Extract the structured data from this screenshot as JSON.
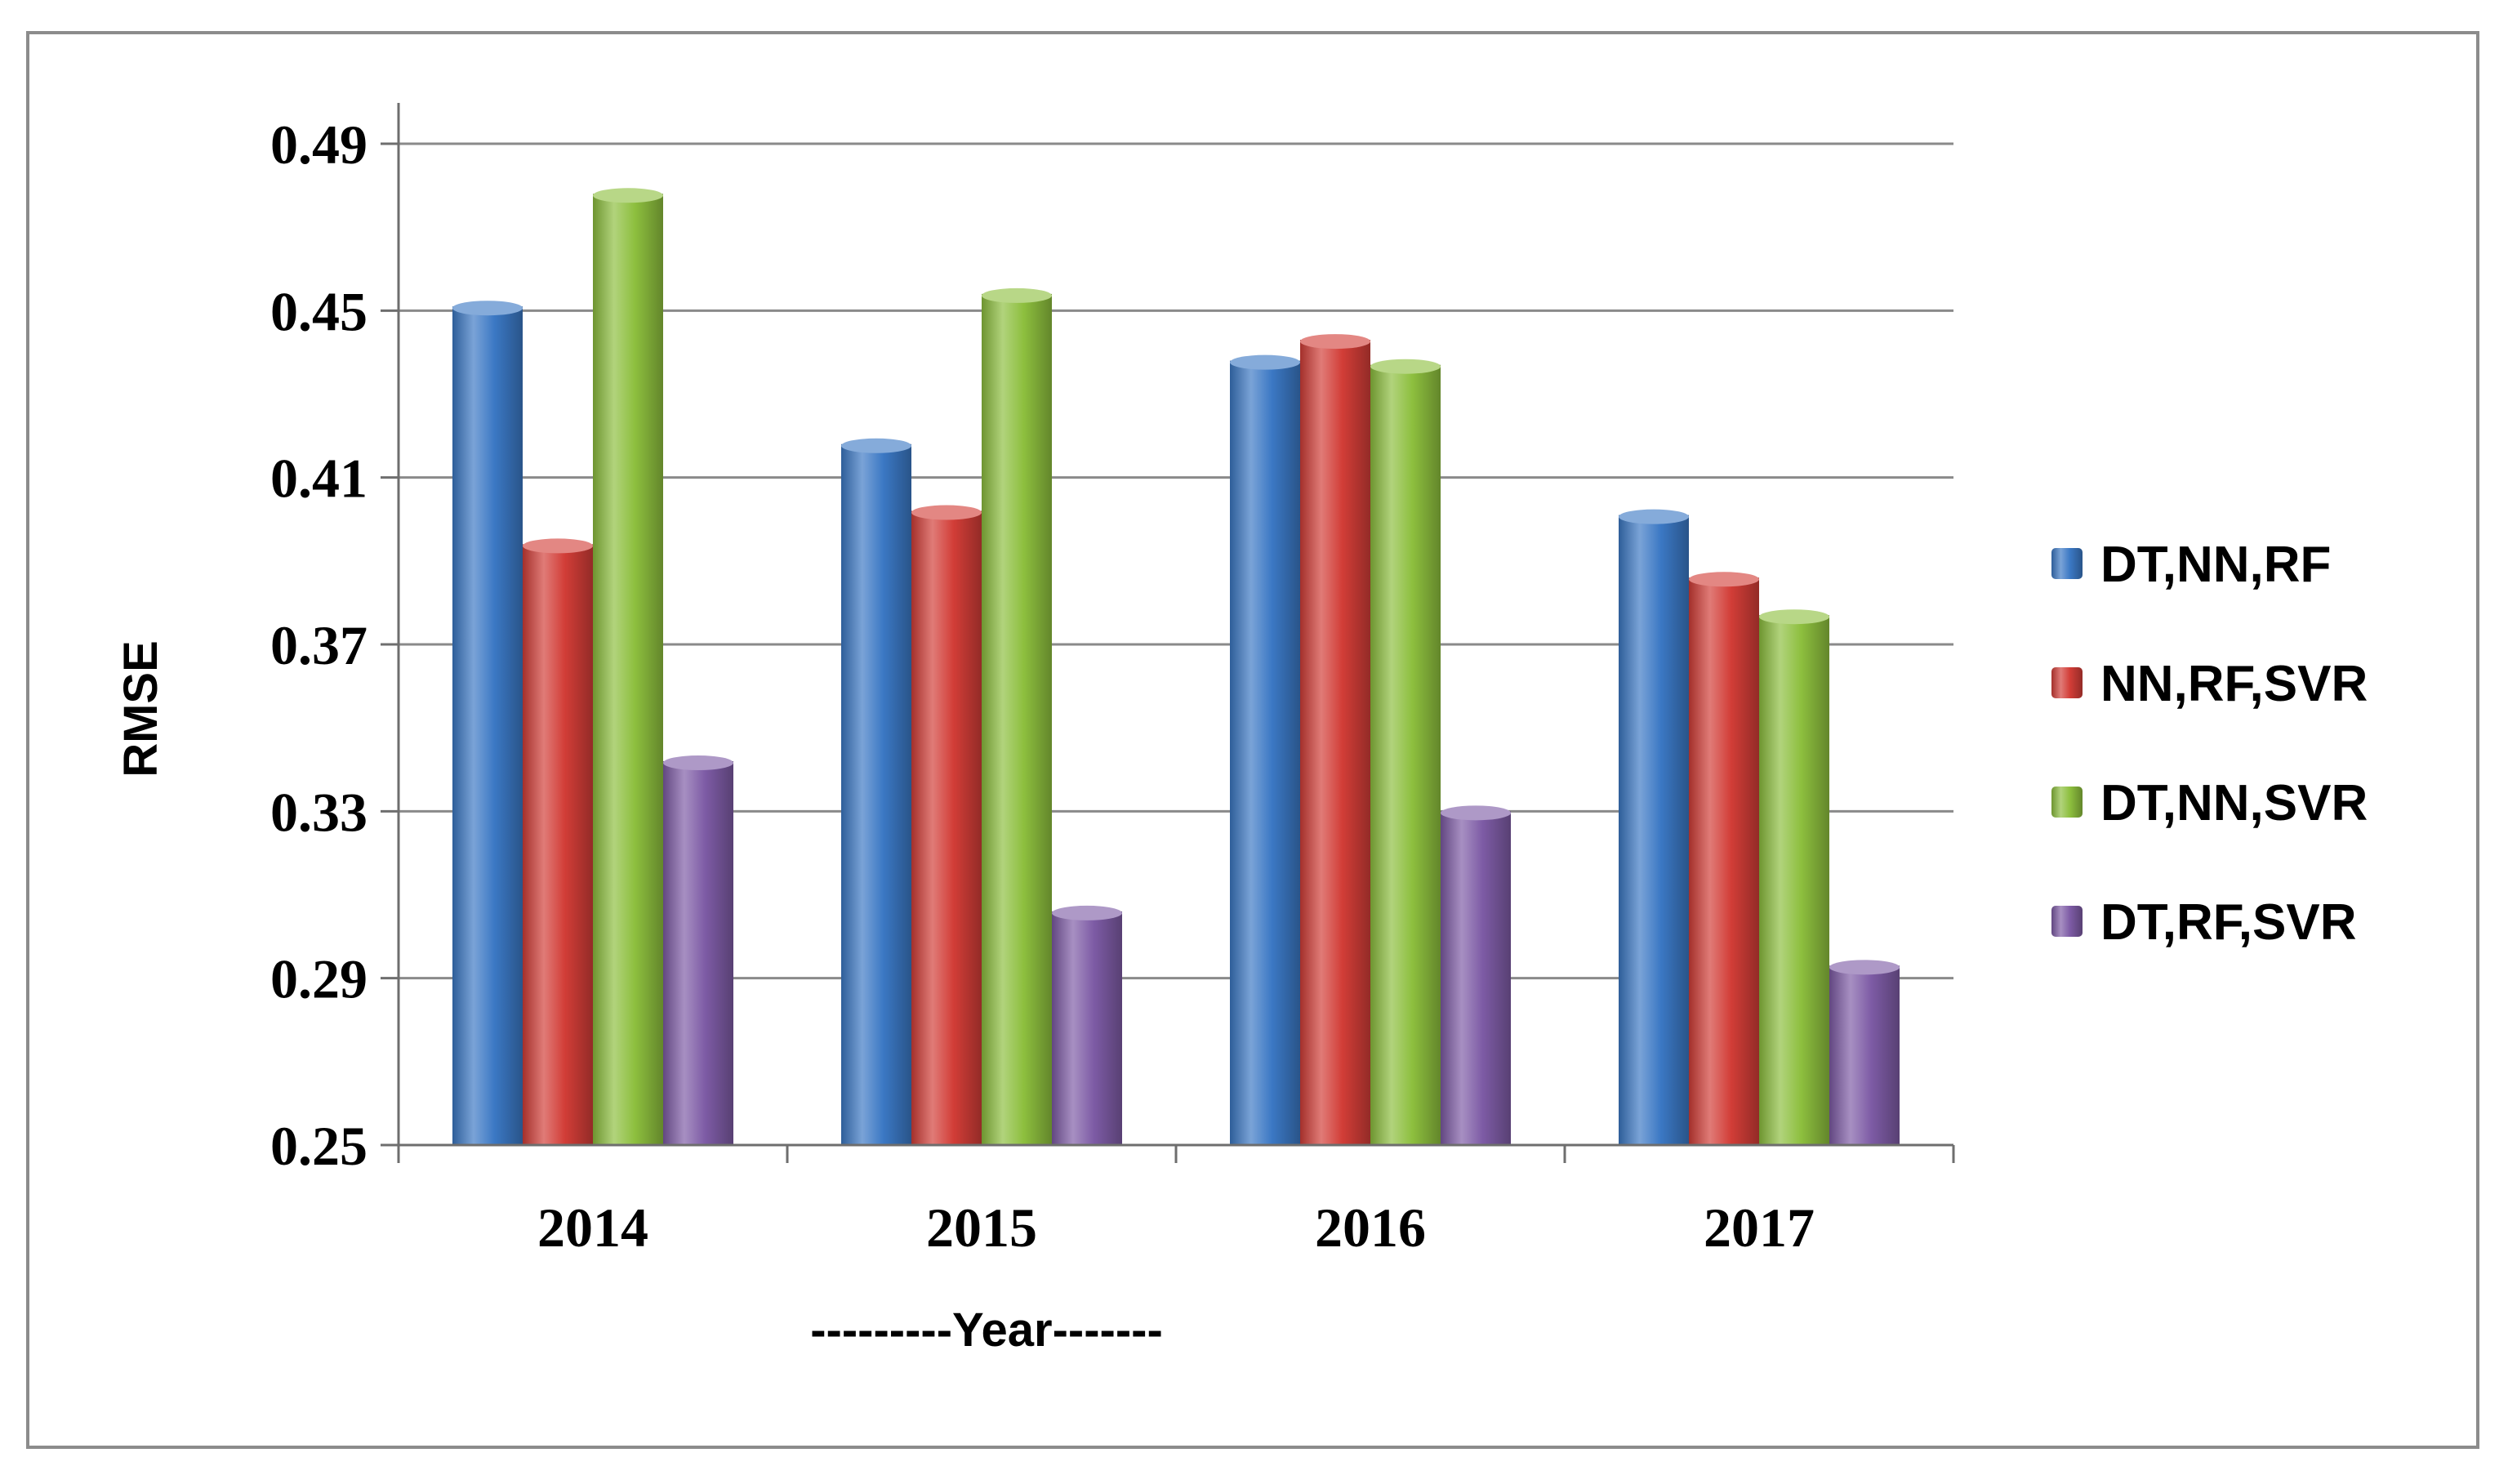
{
  "chart_data": {
    "type": "bar",
    "categories": [
      "2014",
      "2015",
      "2016",
      "2017"
    ],
    "series": [
      {
        "name": "DT,NN,RF",
        "values": [
          0.451,
          0.418,
          0.438,
          0.401
        ],
        "color": "#3b78c4"
      },
      {
        "name": "NN,RF,SVR",
        "values": [
          0.394,
          0.402,
          0.443,
          0.386
        ],
        "color": "#d23d37"
      },
      {
        "name": "DT,NN,SVR",
        "values": [
          0.478,
          0.454,
          0.437,
          0.377
        ],
        "color": "#8dbf3e"
      },
      {
        "name": "DT,RF,SVR",
        "values": [
          0.342,
          0.306,
          0.33,
          0.293
        ],
        "color": "#7d5ba5"
      }
    ],
    "xlabel": "---------Year-------",
    "ylabel": "RMSE",
    "ylim": [
      0.25,
      0.49
    ],
    "yticks": [
      "0.49",
      "0.45",
      "0.41",
      "0.37",
      "0.33",
      "0.29",
      "0.25"
    ],
    "grid": true,
    "legend_position": "right"
  }
}
